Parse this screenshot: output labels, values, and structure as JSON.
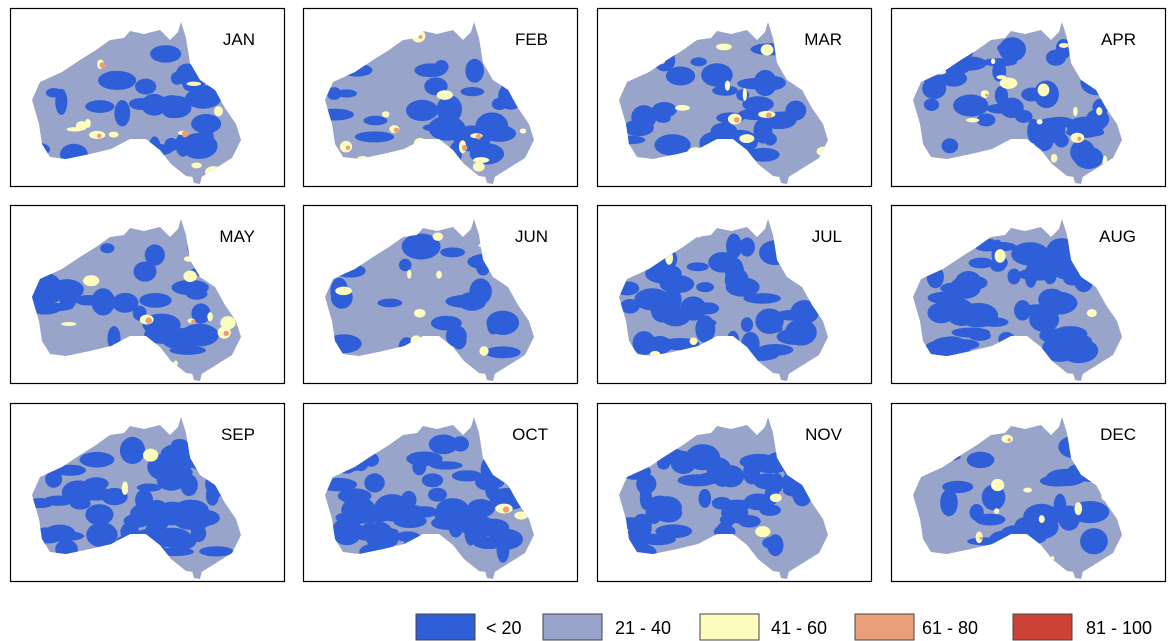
{
  "panels": [
    {
      "label": "JAN"
    },
    {
      "label": "FEB"
    },
    {
      "label": "MAR"
    },
    {
      "label": "APR"
    },
    {
      "label": "MAY"
    },
    {
      "label": "JUN"
    },
    {
      "label": "JUL"
    },
    {
      "label": "AUG"
    },
    {
      "label": "SEP"
    },
    {
      "label": "OCT"
    },
    {
      "label": "NOV"
    },
    {
      "label": "DEC"
    }
  ],
  "legend": [
    {
      "label": "< 20",
      "color": "#2e5fd8"
    },
    {
      "label": "21 - 40",
      "color": "#98a4c9"
    },
    {
      "label": "41 - 60",
      "color": "#fdfcbe"
    },
    {
      "label": "61 - 80",
      "color": "#e9a07a"
    },
    {
      "label": "81 - 100",
      "color": "#cc4236"
    }
  ]
}
